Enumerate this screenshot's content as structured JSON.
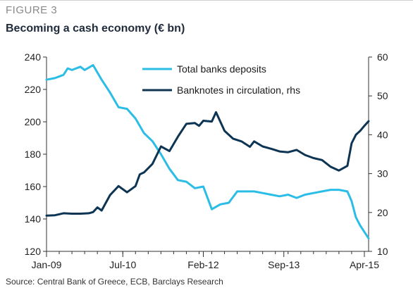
{
  "header": {
    "figure_label": "FIGURE 3",
    "title": "Becoming a cash economy (€ bn)"
  },
  "footer": {
    "source": "Source: Central Bank of Greece, ECB, Barclays Research"
  },
  "chart_data": {
    "type": "line",
    "title": "Becoming a cash economy (€ bn)",
    "x_ticks": [
      "Jan-09",
      "Jul-10",
      "Feb-12",
      "Sep-13",
      "Apr-15"
    ],
    "x_range": [
      "2009-01",
      "2015-05"
    ],
    "y_left": {
      "range": [
        120,
        240
      ],
      "ticks": [
        120,
        140,
        160,
        180,
        200,
        220,
        240
      ]
    },
    "y_right": {
      "range": [
        10,
        60
      ],
      "ticks": [
        10,
        20,
        30,
        40,
        50,
        60
      ]
    },
    "grid": false,
    "legend_position": "top-center",
    "series": [
      {
        "name": "Total banks deposits",
        "axis": "left",
        "color": "#2bbde6",
        "points": [
          [
            "2009-01",
            226
          ],
          [
            "2009-03",
            227
          ],
          [
            "2009-05",
            229
          ],
          [
            "2009-06",
            233
          ],
          [
            "2009-07",
            232
          ],
          [
            "2009-09",
            234
          ],
          [
            "2009-10",
            232
          ],
          [
            "2009-12",
            235
          ],
          [
            "2010-02",
            226
          ],
          [
            "2010-04",
            218
          ],
          [
            "2010-06",
            209
          ],
          [
            "2010-08",
            208
          ],
          [
            "2010-10",
            202
          ],
          [
            "2010-12",
            193
          ],
          [
            "2011-02",
            188
          ],
          [
            "2011-04",
            180
          ],
          [
            "2011-06",
            171
          ],
          [
            "2011-08",
            164
          ],
          [
            "2011-10",
            163
          ],
          [
            "2011-12",
            159
          ],
          [
            "2012-02",
            160
          ],
          [
            "2012-04",
            146
          ],
          [
            "2012-06",
            149
          ],
          [
            "2012-08",
            150
          ],
          [
            "2012-10",
            157
          ],
          [
            "2012-12",
            157
          ],
          [
            "2013-02",
            157
          ],
          [
            "2013-04",
            156
          ],
          [
            "2013-06",
            155
          ],
          [
            "2013-08",
            154
          ],
          [
            "2013-10",
            155
          ],
          [
            "2013-12",
            153
          ],
          [
            "2014-02",
            155
          ],
          [
            "2014-04",
            156
          ],
          [
            "2014-06",
            157
          ],
          [
            "2014-08",
            158
          ],
          [
            "2014-10",
            158
          ],
          [
            "2014-12",
            157
          ],
          [
            "2015-01",
            151
          ],
          [
            "2015-02",
            141
          ],
          [
            "2015-03",
            136
          ],
          [
            "2015-04",
            132
          ],
          [
            "2015-05",
            128
          ]
        ]
      },
      {
        "name": "Banknotes in circulation, rhs",
        "axis": "right",
        "color": "#0d3553",
        "points": [
          [
            "2009-01",
            19.2
          ],
          [
            "2009-03",
            19.3
          ],
          [
            "2009-05",
            19.8
          ],
          [
            "2009-07",
            19.7
          ],
          [
            "2009-09",
            19.7
          ],
          [
            "2009-11",
            19.8
          ],
          [
            "2009-12",
            20.1
          ],
          [
            "2010-01",
            21.3
          ],
          [
            "2010-02",
            20.5
          ],
          [
            "2010-04",
            24.5
          ],
          [
            "2010-06",
            26.8
          ],
          [
            "2010-08",
            25.2
          ],
          [
            "2010-10",
            26.8
          ],
          [
            "2010-11",
            29.8
          ],
          [
            "2010-12",
            30.3
          ],
          [
            "2011-02",
            32.5
          ],
          [
            "2011-04",
            37.0
          ],
          [
            "2011-06",
            35.8
          ],
          [
            "2011-08",
            39.5
          ],
          [
            "2011-10",
            42.8
          ],
          [
            "2011-12",
            43.0
          ],
          [
            "2012-01",
            42.3
          ],
          [
            "2012-02",
            43.6
          ],
          [
            "2012-04",
            43.4
          ],
          [
            "2012-05",
            45.8
          ],
          [
            "2012-07",
            41.0
          ],
          [
            "2012-09",
            39.0
          ],
          [
            "2012-11",
            38.3
          ],
          [
            "2013-01",
            36.9
          ],
          [
            "2013-02",
            38.3
          ],
          [
            "2013-04",
            37.0
          ],
          [
            "2013-06",
            36.4
          ],
          [
            "2013-08",
            35.7
          ],
          [
            "2013-10",
            35.5
          ],
          [
            "2013-12",
            36.1
          ],
          [
            "2014-02",
            34.8
          ],
          [
            "2014-04",
            34.0
          ],
          [
            "2014-06",
            33.5
          ],
          [
            "2014-08",
            31.8
          ],
          [
            "2014-10",
            30.8
          ],
          [
            "2014-12",
            32.0
          ],
          [
            "2015-01",
            37.8
          ],
          [
            "2015-02",
            40.0
          ],
          [
            "2015-03",
            41.0
          ],
          [
            "2015-04",
            42.3
          ],
          [
            "2015-05",
            43.5
          ]
        ]
      }
    ]
  }
}
